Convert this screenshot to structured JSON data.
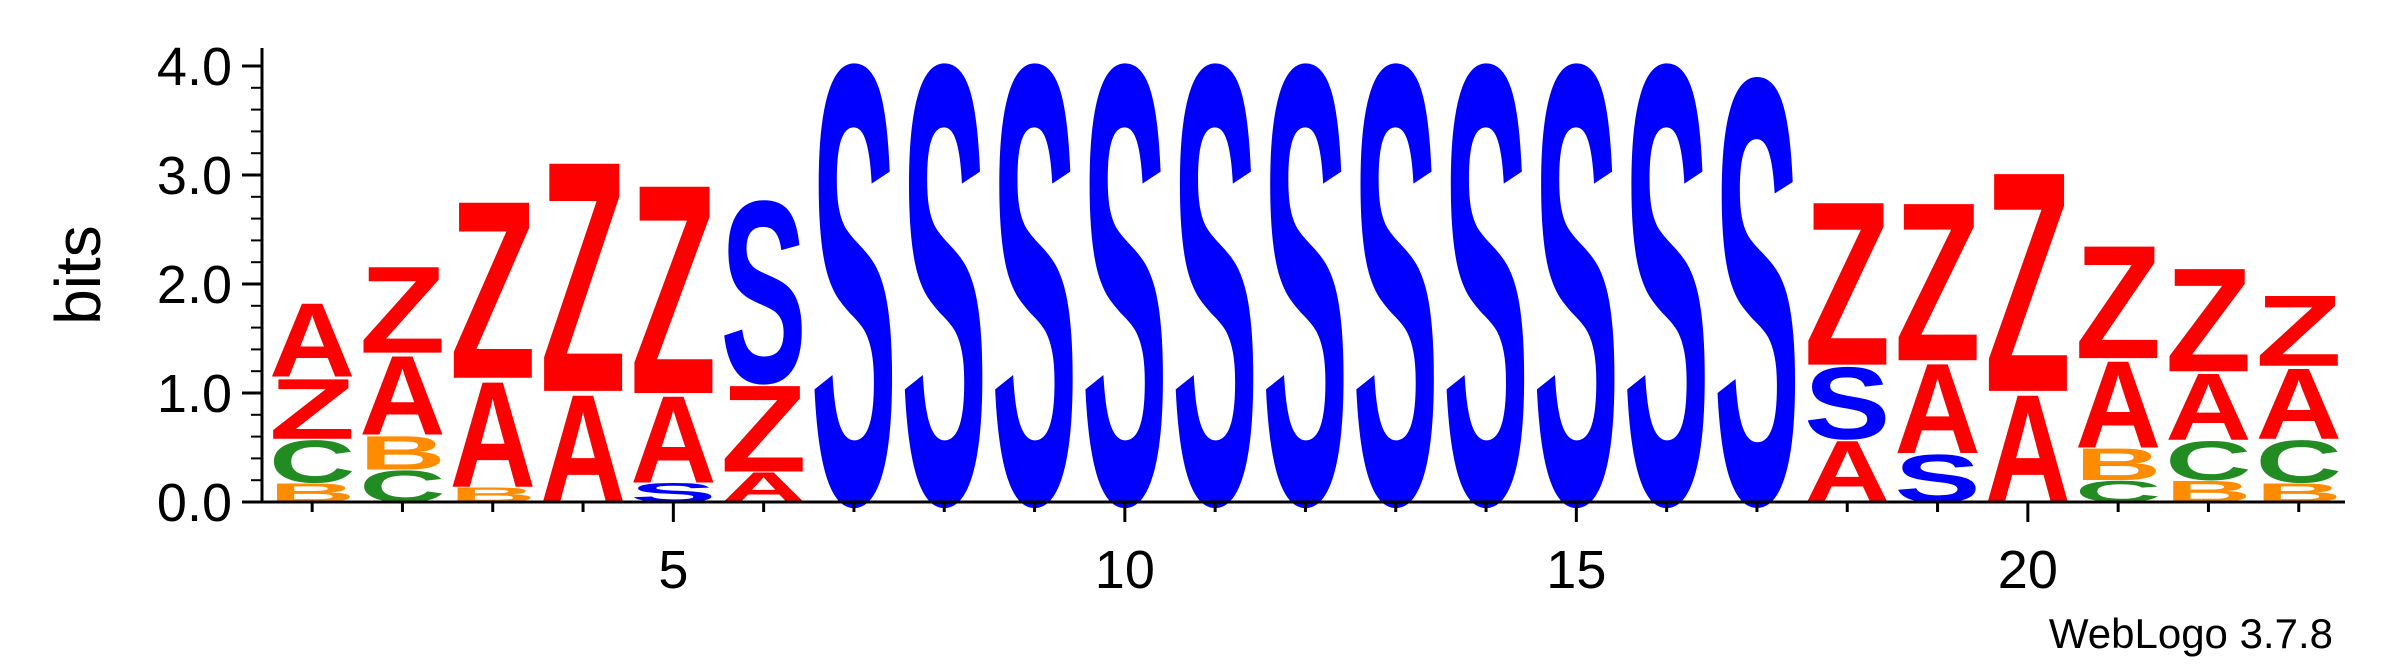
{
  "chart_data": {
    "type": "sequence-logo",
    "ylabel": "bits",
    "ylim": [
      0,
      4.0
    ],
    "y_ticks": [
      "0.0",
      "1.0",
      "2.0",
      "3.0",
      "4.0"
    ],
    "x_ticks": [
      5,
      10,
      15,
      20
    ],
    "x_tick_labels": [
      "5",
      "10",
      "15",
      "20"
    ],
    "credit": "WebLogo 3.7.8",
    "colors": {
      "A": "#ff0000",
      "Z": "#ff0000",
      "S": "#0000ff",
      "C": "#228b22",
      "B": "#ff8c00"
    },
    "positions": [
      {
        "pos": 1,
        "stack": [
          [
            "B",
            0.18
          ],
          [
            "C",
            0.4
          ],
          [
            "Z",
            0.57
          ],
          [
            "A",
            0.7
          ]
        ]
      },
      {
        "pos": 2,
        "stack": [
          [
            "C",
            0.3
          ],
          [
            "B",
            0.32
          ],
          [
            "A",
            0.75
          ],
          [
            "Z",
            0.82
          ]
        ]
      },
      {
        "pos": 3,
        "stack": [
          [
            "B",
            0.14
          ],
          [
            "A",
            1.0
          ],
          [
            "Z",
            1.68
          ]
        ]
      },
      {
        "pos": 4,
        "stack": [
          [
            "A",
            1.02
          ],
          [
            "Z",
            2.18
          ]
        ]
      },
      {
        "pos": 5,
        "stack": [
          [
            "S",
            0.18
          ],
          [
            "A",
            0.82
          ],
          [
            "Z",
            1.98
          ]
        ]
      },
      {
        "pos": 6,
        "stack": [
          [
            "A",
            0.28
          ],
          [
            "Z",
            0.82
          ],
          [
            "S",
            1.72
          ]
        ]
      },
      {
        "pos": 7,
        "stack": [
          [
            "S",
            4.15
          ]
        ]
      },
      {
        "pos": 8,
        "stack": [
          [
            "S",
            4.15
          ]
        ]
      },
      {
        "pos": 9,
        "stack": [
          [
            "S",
            4.15
          ]
        ]
      },
      {
        "pos": 10,
        "stack": [
          [
            "S",
            4.15
          ]
        ]
      },
      {
        "pos": 11,
        "stack": [
          [
            "S",
            4.15
          ]
        ]
      },
      {
        "pos": 12,
        "stack": [
          [
            "S",
            4.15
          ]
        ]
      },
      {
        "pos": 13,
        "stack": [
          [
            "S",
            4.15
          ]
        ]
      },
      {
        "pos": 14,
        "stack": [
          [
            "S",
            4.15
          ]
        ]
      },
      {
        "pos": 15,
        "stack": [
          [
            "S",
            4.15
          ]
        ]
      },
      {
        "pos": 16,
        "stack": [
          [
            "S",
            4.15
          ]
        ]
      },
      {
        "pos": 17,
        "stack": [
          [
            "S",
            4.02
          ]
        ]
      },
      {
        "pos": 18,
        "stack": [
          [
            "A",
            0.58
          ],
          [
            "S",
            0.68
          ],
          [
            "Z",
            1.55
          ]
        ]
      },
      {
        "pos": 19,
        "stack": [
          [
            "S",
            0.45
          ],
          [
            "A",
            0.85
          ],
          [
            "Z",
            1.5
          ]
        ]
      },
      {
        "pos": 20,
        "stack": [
          [
            "A",
            1.02
          ],
          [
            "Z",
            2.08
          ]
        ]
      },
      {
        "pos": 21,
        "stack": [
          [
            "C",
            0.2
          ],
          [
            "B",
            0.3
          ],
          [
            "A",
            0.82
          ],
          [
            "Z",
            1.07
          ]
        ]
      },
      {
        "pos": 22,
        "stack": [
          [
            "B",
            0.2
          ],
          [
            "C",
            0.37
          ],
          [
            "A",
            0.63
          ],
          [
            "Z",
            0.98
          ]
        ]
      },
      {
        "pos": 23,
        "stack": [
          [
            "B",
            0.18
          ],
          [
            "C",
            0.4
          ],
          [
            "A",
            0.67
          ],
          [
            "Z",
            0.67
          ]
        ]
      }
    ]
  }
}
